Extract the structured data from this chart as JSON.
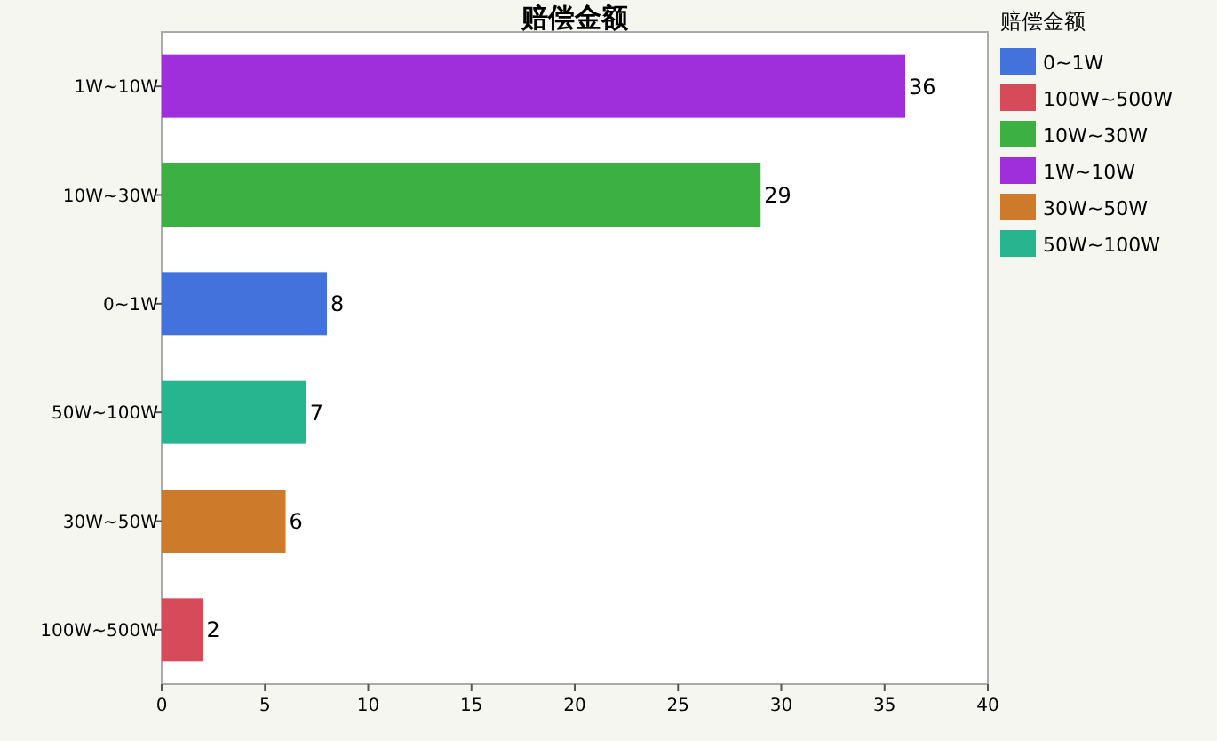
{
  "chart_data": {
    "type": "bar",
    "orientation": "horizontal",
    "title": "赔偿金额",
    "legend_title": "赔偿金额",
    "categories": [
      "1W~10W",
      "10W~30W",
      "0~1W",
      "50W~100W",
      "30W~50W",
      "100W~500W"
    ],
    "series": [
      {
        "name": "0~1W",
        "color": "#4472dd",
        "values": [
          null,
          null,
          8,
          null,
          null,
          null
        ]
      },
      {
        "name": "100W~500W",
        "color": "#d64a5a",
        "values": [
          null,
          null,
          null,
          null,
          null,
          2
        ]
      },
      {
        "name": "10W~30W",
        "color": "#3cb043",
        "values": [
          null,
          29,
          null,
          null,
          null,
          null
        ]
      },
      {
        "name": "1W~10W",
        "color": "#9e2fdb",
        "values": [
          36,
          null,
          null,
          null,
          null,
          null
        ]
      },
      {
        "name": "30W~50W",
        "color": "#cd7a2a",
        "values": [
          null,
          null,
          null,
          null,
          6,
          null
        ]
      },
      {
        "name": "50W~100W",
        "color": "#27b58f",
        "values": [
          null,
          null,
          null,
          7,
          null,
          null
        ]
      }
    ],
    "xlim": [
      0,
      40
    ],
    "xticks": [
      0,
      5,
      10,
      15,
      20,
      25,
      30,
      35,
      40
    ],
    "data_labels": true,
    "legend": "right",
    "grid": false
  }
}
